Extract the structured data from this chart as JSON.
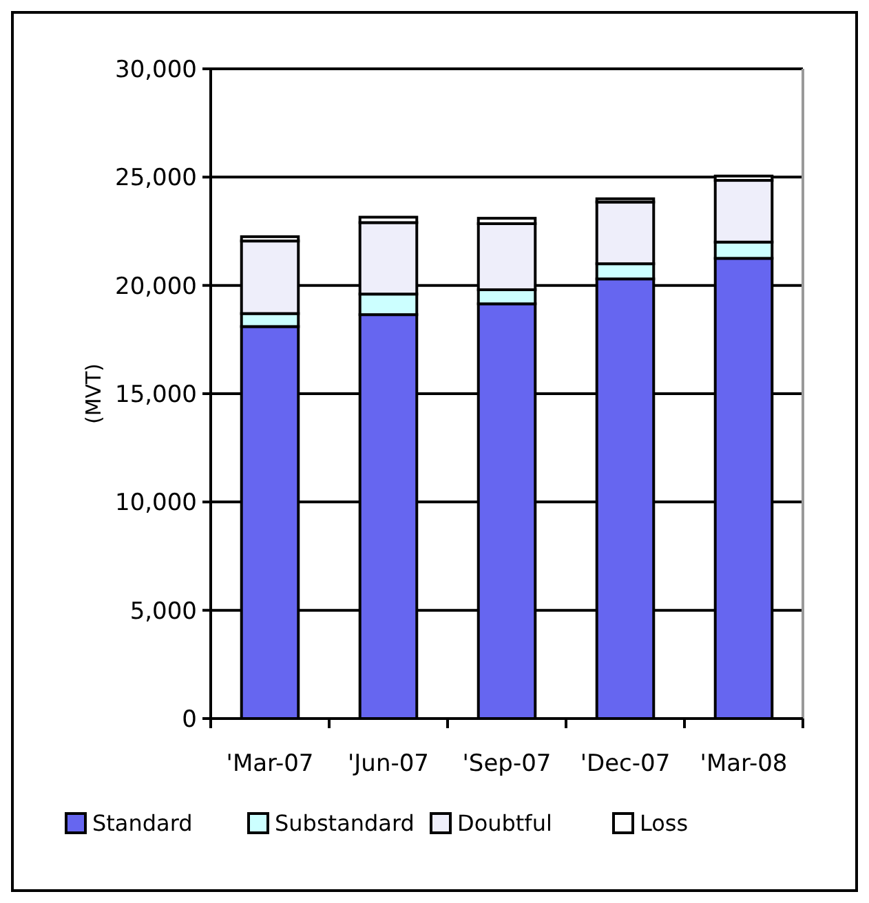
{
  "chart_data": {
    "type": "bar",
    "stacked": true,
    "ylabel": "(MVT)",
    "categories": [
      "'Mar-07",
      "'Jun-07",
      "'Sep-07",
      "'Dec-07",
      "'Mar-08"
    ],
    "series": [
      {
        "name": "Standard",
        "color": "#6666f0",
        "values": [
          18100,
          18650,
          19150,
          20300,
          21250
        ]
      },
      {
        "name": "Substandard",
        "color": "#ccffff",
        "values": [
          600,
          950,
          650,
          700,
          750
        ]
      },
      {
        "name": "Doubtful",
        "color": "#eeeefa",
        "values": [
          3350,
          3300,
          3050,
          2850,
          2850
        ]
      },
      {
        "name": "Loss",
        "color": "#ffffff",
        "values": [
          200,
          250,
          250,
          150,
          200
        ]
      }
    ],
    "ylim": [
      0,
      30000
    ],
    "yticks": [
      {
        "value": 0,
        "label": "0"
      },
      {
        "value": 5000,
        "label": "5,000"
      },
      {
        "value": 10000,
        "label": "10,000"
      },
      {
        "value": 15000,
        "label": "15,000"
      },
      {
        "value": 20000,
        "label": "20,000"
      },
      {
        "value": 25000,
        "label": "25,000"
      },
      {
        "value": 30000,
        "label": "30,000"
      }
    ],
    "grid": "y",
    "legend": "bottom"
  }
}
